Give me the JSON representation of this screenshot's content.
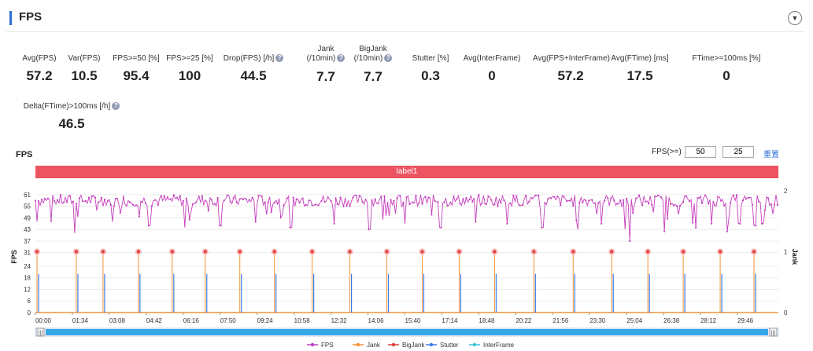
{
  "section": {
    "title": "FPS",
    "collapse_icon": "chevron-down-icon"
  },
  "metrics": [
    {
      "label": "Avg(FPS)",
      "value": "57.2"
    },
    {
      "label": "Var(FPS)",
      "value": "10.5"
    },
    {
      "label": "FPS>=50 [%]",
      "value": "95.4"
    },
    {
      "label": "FPS>=25 [%]",
      "value": "100"
    },
    {
      "label": "Drop(FPS) [/h]",
      "value": "44.5",
      "help": true
    },
    {
      "label": "Jank",
      "label2": "(/10min)",
      "value": "7.7",
      "help": true
    },
    {
      "label": "BigJank",
      "label2": "(/10min)",
      "value": "7.7",
      "help": true
    },
    {
      "label": "Stutter [%]",
      "value": "0.3"
    },
    {
      "label": "Avg(InterFrame)",
      "value": "0"
    },
    {
      "label": "Avg(FPS+InterFrame)",
      "value": "57.2"
    },
    {
      "label": "Avg(FTime) [ms]",
      "value": "17.5"
    },
    {
      "label": "FTime>=100ms [%]",
      "value": "0"
    },
    {
      "label": "Delta(FTime)>100ms [/h]",
      "value": "46.5",
      "help": true
    }
  ],
  "help_glyph": "?",
  "chart_header": {
    "title": "FPS",
    "threshold_label": "FPS(>=)",
    "threshold1": "50",
    "threshold2": "25",
    "reset_label": "重置"
  },
  "label_bar": "label1",
  "chart_data": {
    "type": "line",
    "title": "FPS",
    "ylabel": "FPS",
    "y2label": "Jank",
    "ylim": [
      0,
      63
    ],
    "y2lim": [
      0,
      2
    ],
    "yticks": [
      0,
      6,
      12,
      18,
      24,
      31,
      37,
      43,
      49,
      55,
      61
    ],
    "y2ticks": [
      0,
      1,
      2
    ],
    "x_tick_labels": [
      "00:00",
      "01:34",
      "03:08",
      "04:42",
      "06:16",
      "07:50",
      "09:24",
      "10:58",
      "12:32",
      "14:06",
      "15:40",
      "17:14",
      "18:48",
      "20:22",
      "21:56",
      "23:30",
      "25:04",
      "26:38",
      "28:12",
      "29:46"
    ],
    "x_range_seconds": [
      0,
      1890
    ],
    "fps_baseline": 58,
    "fps_variation": 3,
    "fps_min": 37,
    "fps_dips": [
      {
        "t": 5,
        "v": 47
      },
      {
        "t": 100,
        "v": 41
      },
      {
        "t": 195,
        "v": 47
      },
      {
        "t": 290,
        "v": 45
      },
      {
        "t": 380,
        "v": 44
      },
      {
        "t": 470,
        "v": 45
      },
      {
        "t": 560,
        "v": 47
      },
      {
        "t": 650,
        "v": 44
      },
      {
        "t": 760,
        "v": 46
      },
      {
        "t": 850,
        "v": 43
      },
      {
        "t": 940,
        "v": 46
      },
      {
        "t": 1030,
        "v": 44
      },
      {
        "t": 1120,
        "v": 47
      },
      {
        "t": 1200,
        "v": 46
      },
      {
        "t": 1290,
        "v": 44
      },
      {
        "t": 1380,
        "v": 43
      },
      {
        "t": 1440,
        "v": 46
      },
      {
        "t": 1500,
        "v": 43
      },
      {
        "t": 1512,
        "v": 37
      },
      {
        "t": 1600,
        "v": 42
      },
      {
        "t": 1680,
        "v": 44
      },
      {
        "t": 1720,
        "v": 46
      },
      {
        "t": 1760,
        "v": 42
      },
      {
        "t": 1790,
        "v": 46
      },
      {
        "t": 1830,
        "v": 45
      },
      {
        "t": 1850,
        "v": 46
      }
    ],
    "jank_events_seconds": [
      8,
      108,
      176,
      266,
      352,
      436,
      524,
      612,
      708,
      804,
      898,
      988,
      1082,
      1172,
      1272,
      1372,
      1470,
      1562,
      1652,
      1746,
      1832
    ],
    "jank_value": 1,
    "stutter_height_fps": 20,
    "legend": [
      {
        "name": "FPS",
        "color": "#c63fbd"
      },
      {
        "name": "Jank",
        "color": "#f39336"
      },
      {
        "name": "BigJank",
        "color": "#e23b3b"
      },
      {
        "name": "Stutter",
        "color": "#3c7be8"
      },
      {
        "name": "InterFrame",
        "color": "#35c4d8"
      }
    ]
  },
  "scrollbar": {
    "grip": "|||"
  }
}
